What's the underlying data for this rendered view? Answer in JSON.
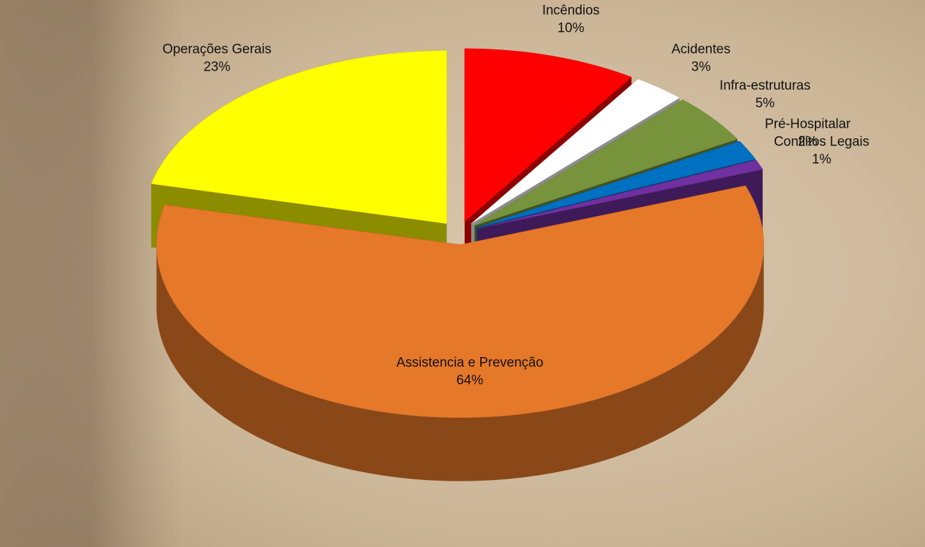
{
  "chart_data": {
    "type": "pie3d",
    "categories": [
      "Incêndios",
      "Acidentes",
      "Infra-estruturas",
      "Pré-Hospitalar",
      "Conflitos Legais",
      "Assistencia e Prevenção",
      "Operações Gerais"
    ],
    "values": [
      10,
      3,
      5,
      2,
      1,
      64,
      23
    ],
    "value_labels": [
      "10%",
      "3%",
      "5%",
      "2%",
      "1%",
      "64%",
      "23%"
    ],
    "colors": [
      "#ff0000",
      "#ffffff",
      "#77933c",
      "#0070c0",
      "#7030a0",
      "#e6782a",
      "#ffff00"
    ]
  }
}
